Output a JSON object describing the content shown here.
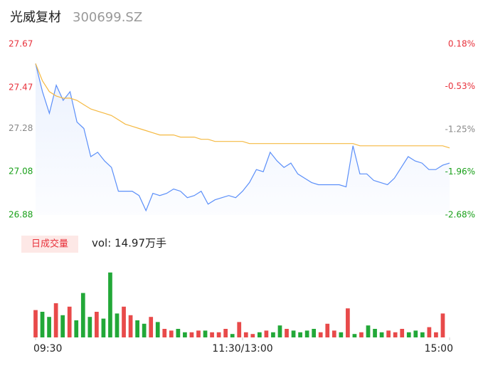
{
  "header": {
    "name": "光威复材",
    "code": "300699.SZ"
  },
  "chart_data": [
    {
      "type": "line",
      "xlim": [
        0,
        240
      ],
      "xticks": [
        {
          "value": 0,
          "label": "09:30"
        },
        {
          "value": 120,
          "label": "11:30/13:00"
        },
        {
          "value": 240,
          "label": "15:00"
        }
      ],
      "ylim": [
        26.88,
        27.67
      ],
      "yticks": [
        27.67,
        27.47,
        27.28,
        27.08,
        26.88
      ],
      "y2lim": [
        -2.68,
        0.18
      ],
      "y2ticks": [
        {
          "value": 0.18,
          "label": "0.18%"
        },
        {
          "value": -0.53,
          "label": "-0.53%"
        },
        {
          "value": -1.25,
          "label": "-1.25%"
        },
        {
          "value": -1.96,
          "label": "-1.96%"
        },
        {
          "value": -2.68,
          "label": "-2.68%"
        }
      ],
      "tick_colors": [
        "#e8323c",
        "#e8323c",
        "#888888",
        "#1aa01a",
        "#1aa01a"
      ],
      "x": [
        0,
        4,
        8,
        12,
        16,
        20,
        24,
        28,
        32,
        36,
        40,
        44,
        48,
        52,
        56,
        60,
        64,
        68,
        72,
        76,
        80,
        84,
        88,
        92,
        96,
        100,
        104,
        108,
        112,
        116,
        120,
        124,
        128,
        132,
        136,
        140,
        144,
        148,
        152,
        156,
        160,
        164,
        168,
        172,
        176,
        180,
        184,
        188,
        192,
        196,
        200,
        204,
        208,
        212,
        216,
        220,
        224,
        228,
        232,
        236,
        240
      ],
      "series": [
        {
          "color": "#5b8ff9",
          "area": true,
          "values": [
            27.58,
            27.45,
            27.35,
            27.48,
            27.41,
            27.45,
            27.31,
            27.28,
            27.15,
            27.17,
            27.13,
            27.1,
            26.99,
            26.99,
            26.99,
            26.97,
            26.9,
            26.98,
            26.97,
            26.98,
            27.0,
            26.99,
            26.96,
            26.97,
            26.99,
            26.93,
            26.95,
            26.96,
            26.97,
            26.96,
            26.99,
            27.03,
            27.09,
            27.08,
            27.17,
            27.13,
            27.1,
            27.12,
            27.07,
            27.05,
            27.03,
            27.02,
            27.02,
            27.02,
            27.02,
            27.01,
            27.2,
            27.07,
            27.07,
            27.04,
            27.03,
            27.02,
            27.05,
            27.1,
            27.15,
            27.13,
            27.12,
            27.09,
            27.09,
            27.11,
            27.12
          ]
        },
        {
          "color": "#f5b942",
          "values": [
            27.58,
            27.5,
            27.45,
            27.43,
            27.42,
            27.42,
            27.41,
            27.39,
            27.37,
            27.36,
            27.35,
            27.34,
            27.32,
            27.3,
            27.29,
            27.28,
            27.27,
            27.26,
            27.25,
            27.25,
            27.25,
            27.24,
            27.24,
            27.24,
            27.23,
            27.23,
            27.22,
            27.22,
            27.22,
            27.22,
            27.22,
            27.21,
            27.21,
            27.21,
            27.21,
            27.21,
            27.21,
            27.21,
            27.21,
            27.21,
            27.21,
            27.21,
            27.21,
            27.21,
            27.21,
            27.21,
            27.21,
            27.2,
            27.2,
            27.2,
            27.2,
            27.2,
            27.2,
            27.2,
            27.2,
            27.2,
            27.2,
            27.2,
            27.2,
            27.2,
            27.19
          ]
        }
      ]
    },
    {
      "type": "bar",
      "legend": "日成交量",
      "summary": "vol: 14.97万手",
      "ylim": [
        0,
        4000
      ],
      "up_color": "#e84a4a",
      "down_color": "#22a838",
      "values": [
        1600,
        1500,
        1200,
        2000,
        1300,
        1800,
        1000,
        2600,
        1200,
        1500,
        1100,
        3800,
        1400,
        1800,
        1300,
        1000,
        800,
        1200,
        900,
        500,
        400,
        500,
        300,
        300,
        400,
        400,
        300,
        300,
        500,
        200,
        900,
        300,
        200,
        300,
        400,
        300,
        700,
        500,
        400,
        300,
        400,
        500,
        300,
        800,
        400,
        300,
        1700,
        200,
        300,
        700,
        500,
        300,
        400,
        300,
        500,
        300,
        400,
        300,
        600,
        300,
        1400
      ]
    }
  ]
}
